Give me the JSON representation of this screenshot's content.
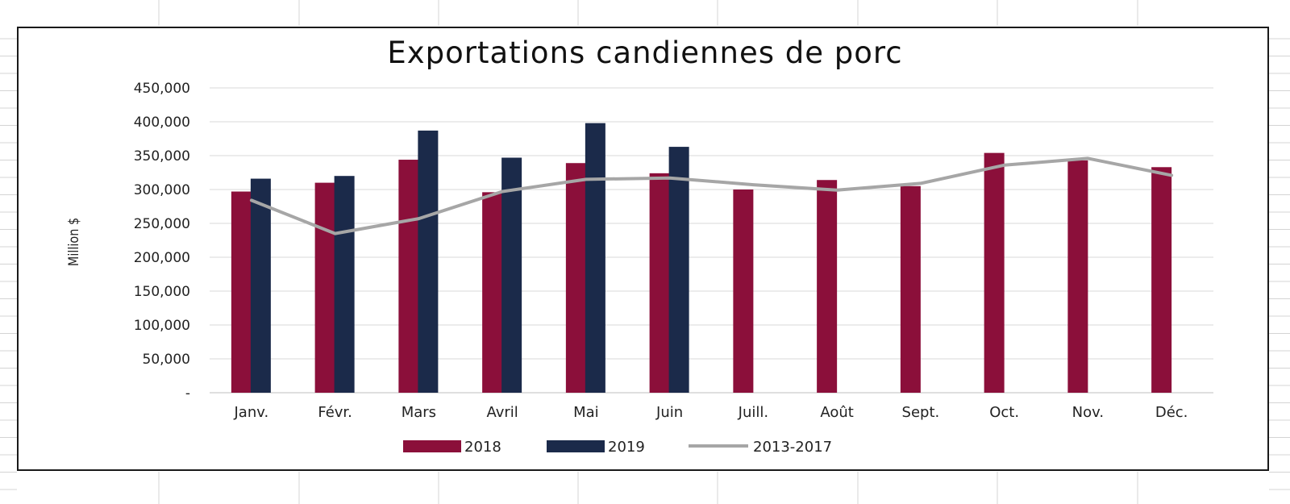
{
  "chart_data": {
    "type": "bar",
    "title": "Exportations candiennes de porc",
    "ylabel": "Million $",
    "xlabel": "",
    "ylim": [
      0,
      450000
    ],
    "yticks": [
      0,
      50000,
      100000,
      150000,
      200000,
      250000,
      300000,
      350000,
      400000,
      450000
    ],
    "ytick_labels": [
      "-",
      "50,000",
      "100,000",
      "150,000",
      "200,000",
      "250,000",
      "300,000",
      "350,000",
      "400,000",
      "450,000"
    ],
    "categories": [
      "Janv.",
      "Févr.",
      "Mars",
      "Avril",
      "Mai",
      "Juin",
      "Juill.",
      "Août",
      "Sept.",
      "Oct.",
      "Nov.",
      "Déc."
    ],
    "series": [
      {
        "name": "2018",
        "kind": "bar",
        "color": "#8b0f3a",
        "values": [
          297000,
          310000,
          344000,
          296000,
          339000,
          324000,
          300000,
          314000,
          305000,
          354000,
          343000,
          333000
        ]
      },
      {
        "name": "2019",
        "kind": "bar",
        "color": "#1b2a4a",
        "values": [
          316000,
          320000,
          387000,
          347000,
          398000,
          363000,
          null,
          null,
          null,
          null,
          null,
          null
        ]
      },
      {
        "name": "2013-2017",
        "kind": "line",
        "color": "#a6a6a6",
        "values": [
          284000,
          235000,
          257000,
          297000,
          315000,
          317000,
          307000,
          299000,
          309000,
          336000,
          346000,
          321000
        ]
      }
    ],
    "grid": true,
    "legend_position": "bottom"
  }
}
